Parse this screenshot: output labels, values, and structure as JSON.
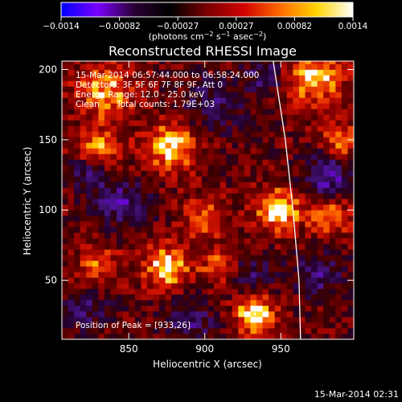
{
  "page": {
    "timestamp": "15-Mar-2014 02:31"
  },
  "colorbar": {
    "tick_labels": [
      "−0.0014",
      "−0.00082",
      "−0.00027",
      "0.00027",
      "0.00082",
      "0.0014"
    ],
    "range": [
      -0.0014,
      0.0014
    ],
    "colors": [
      "#0000ff",
      "#7a00ff",
      "#2a0033",
      "#000000",
      "#7a0000",
      "#d10000",
      "#ff6a00",
      "#ffd400",
      "#ffffff"
    ]
  },
  "chart_data": {
    "type": "heatmap",
    "title": "Reconstructed RHESSI Image",
    "xlabel": "Heliocentric X (arcsec)",
    "ylabel": "Heliocentric Y (arcsec)",
    "xlim": [
      806,
      998
    ],
    "ylim": [
      8,
      206
    ],
    "x_ticks": [
      850,
      900,
      950
    ],
    "y_ticks": [
      50,
      100,
      150,
      200
    ],
    "annotations": {
      "time_range": "15-Mar-2014 06:57:44.000 to 06:58:24.000",
      "detectors": "Detectors: 3F 5F 6F 7F 8F 9F, Att 0",
      "energy_range": "Energy Range: 12.0 - 25.0 keV",
      "clean": "Clean",
      "total_counts": "Total counts: 1.79E+03",
      "peak": "Position of Peak = [933,26]"
    },
    "peak_position": [
      933,
      26
    ],
    "limb_arc": [
      [
        945,
        206
      ],
      [
        953,
        150
      ],
      [
        958,
        100
      ],
      [
        962,
        50
      ],
      [
        963,
        8
      ]
    ],
    "blobs": [
      {
        "x": 948,
        "y": 100,
        "v": 0.95,
        "r": 14
      },
      {
        "x": 933,
        "y": 26,
        "v": 1.0,
        "r": 12
      },
      {
        "x": 878,
        "y": 145,
        "v": 0.85,
        "r": 16
      },
      {
        "x": 875,
        "y": 60,
        "v": 0.9,
        "r": 14
      },
      {
        "x": 835,
        "y": 185,
        "v": 0.7,
        "r": 18
      },
      {
        "x": 830,
        "y": 145,
        "v": 0.6,
        "r": 14
      },
      {
        "x": 972,
        "y": 195,
        "v": 0.8,
        "r": 18
      },
      {
        "x": 990,
        "y": 150,
        "v": 0.6,
        "r": 12
      },
      {
        "x": 982,
        "y": 95,
        "v": 0.65,
        "r": 12
      },
      {
        "x": 900,
        "y": 95,
        "v": 0.5,
        "r": 14
      },
      {
        "x": 910,
        "y": 60,
        "v": 0.55,
        "r": 12
      },
      {
        "x": 830,
        "y": 60,
        "v": 0.5,
        "r": 14
      },
      {
        "x": 845,
        "y": 105,
        "v": -0.55,
        "r": 16
      },
      {
        "x": 822,
        "y": 125,
        "v": -0.45,
        "r": 12
      },
      {
        "x": 905,
        "y": 175,
        "v": -0.45,
        "r": 18
      },
      {
        "x": 980,
        "y": 125,
        "v": -0.7,
        "r": 14
      },
      {
        "x": 975,
        "y": 55,
        "v": -0.55,
        "r": 14
      },
      {
        "x": 940,
        "y": 195,
        "v": -0.5,
        "r": 12
      },
      {
        "x": 930,
        "y": 55,
        "v": -0.4,
        "r": 14
      },
      {
        "x": 822,
        "y": 30,
        "v": -0.4,
        "r": 14
      },
      {
        "x": 890,
        "y": 20,
        "v": -0.45,
        "r": 16
      }
    ]
  }
}
